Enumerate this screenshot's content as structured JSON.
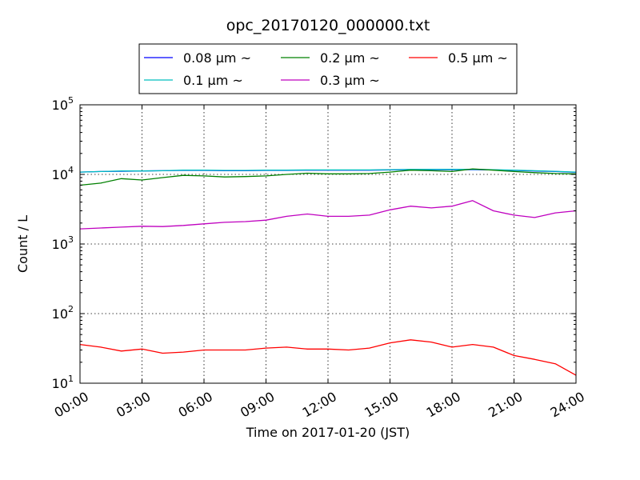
{
  "chart_data": {
    "type": "line",
    "title": "opc_20170120_000000.txt",
    "xlabel": "Time on 2017-01-20 (JST)",
    "ylabel": "Count / L",
    "y_scale": "log",
    "ylim": [
      10,
      100000
    ],
    "xlim": [
      "00:00",
      "24:00"
    ],
    "grid": true,
    "legend_position": "top-center",
    "x_ticks": [
      "00:00",
      "03:00",
      "06:00",
      "09:00",
      "12:00",
      "15:00",
      "18:00",
      "21:00",
      "24:00"
    ],
    "y_ticks": [
      {
        "base": "10",
        "exp": "1"
      },
      {
        "base": "10",
        "exp": "2"
      },
      {
        "base": "10",
        "exp": "3"
      },
      {
        "base": "10",
        "exp": "4"
      },
      {
        "base": "10",
        "exp": "5"
      }
    ],
    "series": [
      {
        "name": "0.08 μm ~",
        "color": "#0000ff",
        "x": [
          "00:00",
          "01:00",
          "02:00",
          "03:00",
          "04:00",
          "05:00",
          "06:00",
          "07:00",
          "08:00",
          "09:00",
          "10:00",
          "11:00",
          "12:00",
          "13:00",
          "14:00",
          "15:00",
          "16:00",
          "17:00",
          "18:00",
          "19:00",
          "20:00",
          "21:00",
          "22:00",
          "23:00",
          "24:00"
        ],
        "values": [
          10800,
          11000,
          11100,
          11200,
          11300,
          11400,
          11400,
          11300,
          11300,
          11400,
          11400,
          11500,
          11500,
          11500,
          11500,
          11600,
          11700,
          11700,
          11700,
          11700,
          11600,
          11400,
          11200,
          11000,
          10700
        ]
      },
      {
        "name": "0.1 μm ~",
        "color": "#00bfbf",
        "x": [
          "00:00",
          "01:00",
          "02:00",
          "03:00",
          "04:00",
          "05:00",
          "06:00",
          "07:00",
          "08:00",
          "09:00",
          "10:00",
          "11:00",
          "12:00",
          "13:00",
          "14:00",
          "15:00",
          "16:00",
          "17:00",
          "18:00",
          "19:00",
          "20:00",
          "21:00",
          "22:00",
          "23:00",
          "24:00"
        ],
        "values": [
          10800,
          11000,
          11200,
          11200,
          11300,
          11500,
          11500,
          11400,
          11400,
          11500,
          11500,
          11600,
          11600,
          11600,
          11600,
          11700,
          11800,
          11800,
          11800,
          11800,
          11700,
          11500,
          11300,
          11100,
          10800
        ]
      },
      {
        "name": "0.2 μm ~",
        "color": "#008000",
        "x": [
          "00:00",
          "01:00",
          "02:00",
          "03:00",
          "04:00",
          "05:00",
          "06:00",
          "07:00",
          "08:00",
          "09:00",
          "10:00",
          "11:00",
          "12:00",
          "13:00",
          "14:00",
          "15:00",
          "16:00",
          "17:00",
          "18:00",
          "19:00",
          "20:00",
          "21:00",
          "22:00",
          "23:00",
          "24:00"
        ],
        "values": [
          7000,
          7500,
          8700,
          8300,
          9000,
          9700,
          9500,
          9200,
          9300,
          9500,
          10000,
          10400,
          10200,
          10200,
          10300,
          10800,
          11500,
          11300,
          11000,
          12000,
          11500,
          11000,
          10600,
          10300,
          10200
        ]
      },
      {
        "name": "0.3 μm ~",
        "color": "#bf00bf",
        "x": [
          "00:00",
          "01:00",
          "02:00",
          "03:00",
          "04:00",
          "05:00",
          "06:00",
          "07:00",
          "08:00",
          "09:00",
          "10:00",
          "11:00",
          "12:00",
          "13:00",
          "14:00",
          "15:00",
          "16:00",
          "17:00",
          "18:00",
          "19:00",
          "20:00",
          "21:00",
          "22:00",
          "23:00",
          "24:00"
        ],
        "values": [
          1650,
          1700,
          1750,
          1800,
          1780,
          1850,
          1950,
          2050,
          2100,
          2200,
          2500,
          2700,
          2500,
          2500,
          2600,
          3100,
          3500,
          3300,
          3500,
          4200,
          3000,
          2600,
          2400,
          2800,
          3000
        ]
      },
      {
        "name": "0.5 μm ~",
        "color": "#ff0000",
        "x": [
          "00:00",
          "01:00",
          "02:00",
          "03:00",
          "04:00",
          "05:00",
          "06:00",
          "07:00",
          "08:00",
          "09:00",
          "10:00",
          "11:00",
          "12:00",
          "13:00",
          "14:00",
          "15:00",
          "16:00",
          "17:00",
          "18:00",
          "19:00",
          "20:00",
          "21:00",
          "22:00",
          "23:00",
          "24:00"
        ],
        "values": [
          36,
          33,
          29,
          31,
          27,
          28,
          30,
          30,
          30,
          32,
          33,
          31,
          31,
          30,
          32,
          38,
          42,
          39,
          33,
          36,
          33,
          25,
          22,
          19,
          13
        ]
      }
    ]
  }
}
